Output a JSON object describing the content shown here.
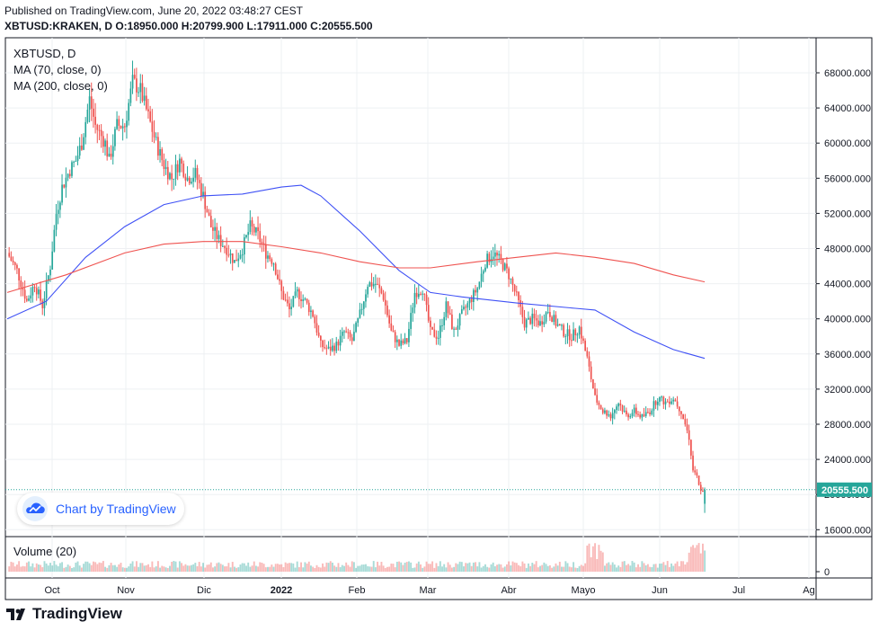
{
  "header": {
    "published": "Published on TradingView.com, June 20, 2022 03:48:27 CEST",
    "ohlc": "XBTUSD:KRAKEN, D  O:18950.000  H:20799.900  L:17911.000  C:20555.500"
  },
  "legend": {
    "symbol": "XBTUSD, D",
    "ma70": "MA (70, close, 0)",
    "ma200": "MA (200, close, 0)"
  },
  "watermark": {
    "text": "Chart by TradingView",
    "icon": "tradingview-cloud-icon"
  },
  "volume_label": "Volume (20)",
  "brand": {
    "text": "TradingView",
    "icon": "tradingview-logo-icon"
  },
  "colors": {
    "up": "#26a69a",
    "down": "#ef5350",
    "ma70": "#3f51f5",
    "ma200": "#ef5350",
    "last_price_bg": "#26a69a"
  },
  "chart_data": {
    "type": "candlestick",
    "title": "XBTUSD, D",
    "y_unit": "USD",
    "ylim": [
      14000,
      70000
    ],
    "y_ticks": [
      "68000.000",
      "64000.000",
      "60000.000",
      "56000.000",
      "52000.000",
      "48000.000",
      "44000.000",
      "40000.000",
      "36000.000",
      "32000.000",
      "28000.000",
      "24000.000",
      "20000.000",
      "16000.000"
    ],
    "x_tick_labels": [
      "Oct",
      "Nov",
      "Dic",
      "2022",
      "Feb",
      "Mar",
      "Abr",
      "Mayo",
      "Jun",
      "Jul",
      "Ag"
    ],
    "last_price": "20555.500",
    "volume_zero_label": "0",
    "grid": true,
    "close_path": [
      [
        0,
        47500
      ],
      [
        5,
        45500
      ],
      [
        10,
        42000
      ],
      [
        14,
        44000
      ],
      [
        18,
        41500
      ],
      [
        22,
        46000
      ],
      [
        25,
        52000
      ],
      [
        28,
        55000
      ],
      [
        32,
        57000
      ],
      [
        35,
        58000
      ],
      [
        38,
        60000
      ],
      [
        42,
        65000
      ],
      [
        45,
        62000
      ],
      [
        50,
        60000
      ],
      [
        52,
        58000
      ],
      [
        56,
        62000
      ],
      [
        60,
        62000
      ],
      [
        64,
        67000
      ],
      [
        68,
        66000
      ],
      [
        72,
        63000
      ],
      [
        76,
        60000
      ],
      [
        80,
        57500
      ],
      [
        84,
        56000
      ],
      [
        88,
        58000
      ],
      [
        92,
        56000
      ],
      [
        96,
        56500
      ],
      [
        100,
        54000
      ],
      [
        104,
        50500
      ],
      [
        108,
        49000
      ],
      [
        112,
        48000
      ],
      [
        116,
        46500
      ],
      [
        120,
        48000
      ],
      [
        124,
        50500
      ],
      [
        128,
        49500
      ],
      [
        132,
        47500
      ],
      [
        136,
        46500
      ],
      [
        140,
        43000
      ],
      [
        144,
        41000
      ],
      [
        148,
        43000
      ],
      [
        152,
        42000
      ],
      [
        156,
        40500
      ],
      [
        160,
        37000
      ],
      [
        164,
        36500
      ],
      [
        168,
        37000
      ],
      [
        172,
        38500
      ],
      [
        176,
        37500
      ],
      [
        180,
        40500
      ],
      [
        184,
        44000
      ],
      [
        188,
        44000
      ],
      [
        192,
        42500
      ],
      [
        196,
        38500
      ],
      [
        200,
        37000
      ],
      [
        204,
        37500
      ],
      [
        208,
        43000
      ],
      [
        212,
        43500
      ],
      [
        216,
        38500
      ],
      [
        220,
        38000
      ],
      [
        224,
        41500
      ],
      [
        228,
        38500
      ],
      [
        232,
        40500
      ],
      [
        236,
        42000
      ],
      [
        240,
        43500
      ],
      [
        244,
        46500
      ],
      [
        248,
        47500
      ],
      [
        252,
        46500
      ],
      [
        256,
        45000
      ],
      [
        260,
        42500
      ],
      [
        264,
        39500
      ],
      [
        268,
        40000
      ],
      [
        272,
        39500
      ],
      [
        276,
        41000
      ],
      [
        280,
        39500
      ],
      [
        284,
        38500
      ],
      [
        288,
        38000
      ],
      [
        292,
        39000
      ],
      [
        296,
        35500
      ],
      [
        300,
        31000
      ],
      [
        304,
        29500
      ],
      [
        308,
        29000
      ],
      [
        312,
        30500
      ],
      [
        316,
        29000
      ],
      [
        320,
        29500
      ],
      [
        324,
        28800
      ],
      [
        328,
        29500
      ],
      [
        332,
        31000
      ],
      [
        336,
        30500
      ],
      [
        340,
        31000
      ],
      [
        344,
        29500
      ],
      [
        348,
        26500
      ],
      [
        350,
        22500
      ],
      [
        352,
        22000
      ],
      [
        354,
        20500
      ],
      [
        356,
        20555
      ]
    ],
    "series": [
      {
        "name": "MA (70, close, 0)",
        "color": "#3f51f5",
        "points": [
          [
            0,
            40000
          ],
          [
            20,
            42000
          ],
          [
            40,
            47000
          ],
          [
            60,
            50500
          ],
          [
            80,
            53000
          ],
          [
            100,
            54000
          ],
          [
            120,
            54200
          ],
          [
            140,
            55000
          ],
          [
            150,
            55200
          ],
          [
            160,
            54000
          ],
          [
            180,
            50000
          ],
          [
            200,
            45500
          ],
          [
            216,
            43000
          ],
          [
            232,
            42500
          ],
          [
            260,
            41800
          ],
          [
            290,
            41200
          ],
          [
            300,
            41000
          ],
          [
            320,
            38500
          ],
          [
            340,
            36500
          ],
          [
            356,
            35500
          ]
        ]
      },
      {
        "name": "MA (200, close, 0)",
        "color": "#ef5350",
        "points": [
          [
            0,
            43000
          ],
          [
            30,
            45000
          ],
          [
            60,
            47500
          ],
          [
            80,
            48500
          ],
          [
            100,
            48800
          ],
          [
            120,
            48800
          ],
          [
            140,
            48200
          ],
          [
            160,
            47500
          ],
          [
            180,
            46500
          ],
          [
            200,
            45800
          ],
          [
            216,
            45800
          ],
          [
            240,
            46500
          ],
          [
            260,
            47000
          ],
          [
            280,
            47500
          ],
          [
            300,
            47000
          ],
          [
            320,
            46300
          ],
          [
            340,
            45000
          ],
          [
            356,
            44200
          ]
        ]
      }
    ],
    "volume_series": "Volume (20)"
  }
}
